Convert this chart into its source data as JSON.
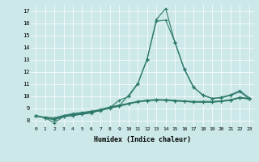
{
  "xlabel": "Humidex (Indice chaleur)",
  "background_color": "#cce8e8",
  "grid_color": "#ffffff",
  "line_color": "#2d7a6a",
  "xlim": [
    -0.5,
    23.5
  ],
  "ylim": [
    7.5,
    17.5
  ],
  "xticks": [
    0,
    1,
    2,
    3,
    4,
    5,
    6,
    7,
    8,
    9,
    10,
    11,
    12,
    13,
    14,
    15,
    16,
    17,
    18,
    19,
    20,
    21,
    22,
    23
  ],
  "yticks": [
    8,
    9,
    10,
    11,
    12,
    13,
    14,
    15,
    16,
    17
  ],
  "series": [
    [
      8.4,
      8.2,
      7.8,
      8.3,
      8.4,
      8.5,
      8.6,
      8.85,
      9.05,
      9.65,
      9.95,
      11.0,
      13.0,
      16.3,
      17.2,
      14.4,
      12.2,
      10.7,
      10.1,
      9.8,
      9.9,
      10.1,
      10.45,
      9.85
    ],
    [
      8.4,
      8.2,
      8.05,
      8.3,
      8.4,
      8.5,
      8.65,
      8.85,
      9.05,
      9.2,
      10.05,
      11.05,
      13.05,
      16.15,
      16.25,
      14.45,
      12.25,
      10.75,
      10.05,
      9.8,
      9.85,
      10.05,
      10.35,
      9.75
    ],
    [
      8.35,
      8.2,
      8.05,
      8.3,
      8.45,
      8.55,
      8.65,
      8.8,
      9.0,
      9.15,
      9.35,
      9.55,
      9.65,
      9.7,
      9.65,
      9.6,
      9.55,
      9.5,
      9.5,
      9.5,
      9.55,
      9.65,
      9.85,
      9.75
    ],
    [
      8.35,
      8.25,
      8.15,
      8.35,
      8.5,
      8.6,
      8.7,
      8.85,
      9.05,
      9.2,
      9.35,
      9.5,
      9.6,
      9.65,
      9.65,
      9.6,
      9.55,
      9.5,
      9.5,
      9.5,
      9.55,
      9.65,
      9.85,
      9.75
    ],
    [
      8.35,
      8.25,
      8.2,
      8.4,
      8.55,
      8.65,
      8.75,
      8.9,
      9.1,
      9.25,
      9.4,
      9.55,
      9.65,
      9.7,
      9.7,
      9.65,
      9.6,
      9.55,
      9.55,
      9.55,
      9.6,
      9.7,
      9.9,
      9.8
    ]
  ]
}
